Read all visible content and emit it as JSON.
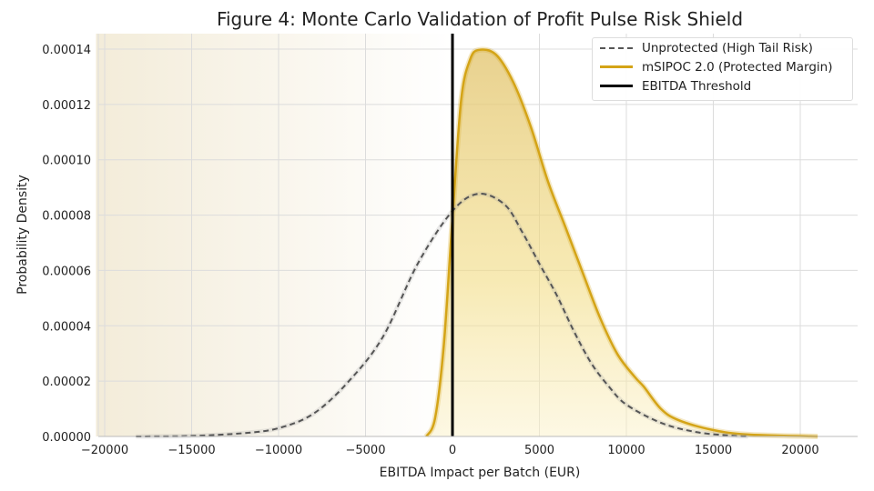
{
  "chart_data": {
    "type": "area",
    "title": "Figure 4: Monte Carlo Validation of Profit Pulse Risk Shield",
    "xlabel": "EBITDA Impact per Batch (EUR)",
    "ylabel": "Probability Density",
    "xlim": [
      -20500,
      22500
    ],
    "ylim": [
      0,
      0.000145
    ],
    "xticks": [
      -20000,
      -15000,
      -10000,
      -5000,
      0,
      5000,
      10000,
      15000,
      20000
    ],
    "xtick_labels": [
      "−20000",
      "−15000",
      "−10000",
      "−5000",
      "0",
      "5000",
      "10000",
      "15000",
      "20000"
    ],
    "yticks": [
      0,
      2e-05,
      4e-05,
      6e-05,
      8e-05,
      0.0001,
      0.00012,
      0.00014
    ],
    "ytick_labels": [
      "0.00000",
      "0.00002",
      "0.00004",
      "0.00006",
      "0.00008",
      "0.00010",
      "0.00012",
      "0.00014"
    ],
    "grid": true,
    "legend_position": "top-right",
    "threshold": {
      "name": "EBITDA Threshold",
      "x": 0,
      "color": "#000000"
    },
    "series": [
      {
        "name": "Unprotected (High Tail Risk)",
        "style": "dashed",
        "color": "#555555",
        "x": [
          -18200,
          -15000,
          -12000,
          -10000,
          -8000,
          -6000,
          -4000,
          -2000,
          0,
          1500,
          3000,
          4000,
          5000,
          6000,
          7000,
          8000,
          9000,
          10000,
          12000,
          14000,
          16000,
          17000
        ],
        "y": [
          0,
          2e-07,
          1.2e-06,
          3e-06,
          8.2e-06,
          1.97e-05,
          3.6e-05,
          6.24e-05,
          8.15e-05,
          8.77e-05,
          8.38e-05,
          7.4e-05,
          6.24e-05,
          5.1e-05,
          3.78e-05,
          2.63e-05,
          1.8e-05,
          1.15e-05,
          4.9e-06,
          1.6e-06,
          3e-07,
          0
        ]
      },
      {
        "name": "mSIPOC 2.0 (Protected Margin)",
        "style": "solid-filled",
        "color": "#d4a417",
        "x": [
          -1500,
          -1000,
          -500,
          0,
          500,
          1000,
          1500,
          2500,
          3500,
          4500,
          5500,
          6500,
          7500,
          8500,
          9500,
          10500,
          11000,
          12000,
          13000,
          15000,
          17000,
          21000
        ],
        "y": [
          0,
          6.6e-06,
          3.29e-05,
          7.9e-05,
          0.0001216,
          0.000136,
          0.0001397,
          0.000138,
          0.000128,
          0.000112,
          9.2e-05,
          7.56e-05,
          5.9e-05,
          4.27e-05,
          2.96e-05,
          2.14e-05,
          1.8e-05,
          9.9e-06,
          5.9e-06,
          2.3e-06,
          7e-07,
          0
        ]
      }
    ]
  }
}
